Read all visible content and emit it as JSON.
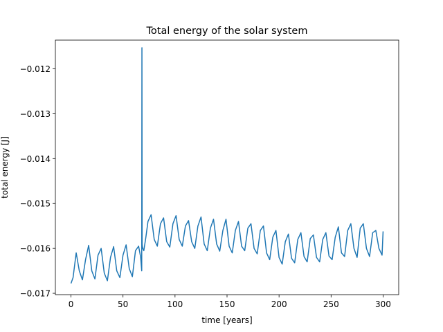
{
  "chart_data": {
    "type": "line",
    "title": "Total energy of the solar system",
    "xlabel": "time [years]",
    "ylabel": "total energy [J]",
    "xlim": [
      -15,
      315
    ],
    "ylim": [
      -0.01703,
      -0.01136
    ],
    "xticks": [
      0,
      50,
      100,
      150,
      200,
      250,
      300
    ],
    "xtick_labels": [
      "0",
      "50",
      "100",
      "150",
      "200",
      "250",
      "300"
    ],
    "yticks": [
      -0.017,
      -0.016,
      -0.015,
      -0.014,
      -0.013,
      -0.012
    ],
    "ytick_labels": [
      "−0.017",
      "−0.016",
      "−0.015",
      "−0.014",
      "−0.013",
      "−0.012"
    ],
    "grid": false,
    "series": [
      {
        "color": "#1f77b4",
        "x": [
          0,
          2,
          5,
          8,
          11,
          14,
          17,
          20,
          23,
          26,
          29,
          32,
          35,
          38,
          41,
          44,
          47,
          50,
          53,
          56,
          59,
          62,
          65,
          67,
          68,
          68.2,
          68.4,
          68.6,
          69,
          70,
          72,
          74,
          77,
          80,
          83,
          86,
          89,
          92,
          95,
          98,
          101,
          104,
          107,
          110,
          113,
          116,
          119,
          122,
          125,
          128,
          131,
          134,
          137,
          140,
          143,
          146,
          149,
          152,
          155,
          158,
          161,
          164,
          167,
          170,
          173,
          176,
          179,
          182,
          185,
          188,
          191,
          194,
          197,
          200,
          203,
          206,
          209,
          212,
          215,
          218,
          221,
          224,
          227,
          230,
          233,
          236,
          239,
          242,
          245,
          248,
          251,
          254,
          257,
          260,
          263,
          266,
          269,
          272,
          275,
          278,
          281,
          284,
          287,
          290,
          293,
          296,
          299,
          300
        ],
        "y": [
          -0.01678,
          -0.01665,
          -0.0161,
          -0.0165,
          -0.0167,
          -0.01625,
          -0.01593,
          -0.0165,
          -0.01668,
          -0.01615,
          -0.016,
          -0.01655,
          -0.01672,
          -0.0162,
          -0.01596,
          -0.0165,
          -0.01665,
          -0.01615,
          -0.01592,
          -0.01645,
          -0.01663,
          -0.01605,
          -0.01595,
          -0.0162,
          -0.0165,
          -0.01153,
          -0.0159,
          -0.01595,
          -0.016,
          -0.01605,
          -0.01575,
          -0.0154,
          -0.01525,
          -0.0158,
          -0.01595,
          -0.01545,
          -0.01532,
          -0.01585,
          -0.01597,
          -0.01545,
          -0.01527,
          -0.0158,
          -0.01595,
          -0.0155,
          -0.01538,
          -0.01585,
          -0.016,
          -0.0155,
          -0.0153,
          -0.0159,
          -0.01605,
          -0.01555,
          -0.01535,
          -0.0159,
          -0.01606,
          -0.0156,
          -0.01535,
          -0.01595,
          -0.0161,
          -0.0156,
          -0.0154,
          -0.01595,
          -0.01605,
          -0.01555,
          -0.01545,
          -0.016,
          -0.01612,
          -0.0156,
          -0.0155,
          -0.0161,
          -0.01625,
          -0.01575,
          -0.0156,
          -0.0162,
          -0.01635,
          -0.01585,
          -0.01568,
          -0.01622,
          -0.01632,
          -0.0158,
          -0.01565,
          -0.01618,
          -0.0163,
          -0.01578,
          -0.0157,
          -0.0162,
          -0.0163,
          -0.0158,
          -0.01565,
          -0.01617,
          -0.01625,
          -0.01575,
          -0.01552,
          -0.0161,
          -0.01618,
          -0.0156,
          -0.01545,
          -0.016,
          -0.0162,
          -0.01555,
          -0.01545,
          -0.016,
          -0.01618,
          -0.01565,
          -0.0156,
          -0.016,
          -0.01615,
          -0.01562
        ]
      }
    ]
  }
}
